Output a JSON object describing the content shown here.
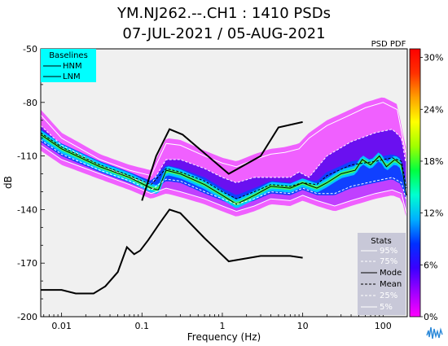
{
  "chart_data": {
    "type": "line",
    "title_line1": "YM.NJ262.--.CH1 : 1410 PSDs",
    "title_line2": "07-JUL-2021 / 05-AUG-2021",
    "xlabel": "Frequency (Hz)",
    "ylabel": "dB",
    "x_scale": "log",
    "xlim": [
      0.0055,
      200
    ],
    "ylim": [
      -200,
      -50
    ],
    "x_ticks": [
      {
        "v": 0.01,
        "label": "0.01"
      },
      {
        "v": 0.1,
        "label": "0.1"
      },
      {
        "v": 1,
        "label": "1"
      },
      {
        "v": 10,
        "label": "10"
      },
      {
        "v": 100,
        "label": "100"
      }
    ],
    "y_ticks": [
      {
        "v": -50,
        "label": "-50"
      },
      {
        "v": -80,
        "label": "-80"
      },
      {
        "v": -110,
        "label": "-110"
      },
      {
        "v": -140,
        "label": "-140"
      },
      {
        "v": -170,
        "label": "-170"
      },
      {
        "v": -200,
        "label": "-200"
      }
    ],
    "colorbar": {
      "title": "PSD PDF",
      "ticks": [
        {
          "v": 30,
          "label": "30%"
        },
        {
          "v": 24,
          "label": "24%"
        },
        {
          "v": 18,
          "label": "18%"
        },
        {
          "v": 12,
          "label": "12%"
        },
        {
          "v": 6,
          "label": "6%"
        },
        {
          "v": 0,
          "label": "0%"
        }
      ],
      "colors": [
        "#ff00ff",
        "#a000ff",
        "#3a00ff",
        "#0030ff",
        "#00b0ff",
        "#00ffd0",
        "#00ff40",
        "#a0ff00",
        "#ffff00",
        "#ffa000",
        "#ff3000",
        "#ff0000"
      ]
    },
    "baselines": {
      "title": "Baselines",
      "items": [
        "HNM",
        "LNM"
      ],
      "HNM": [
        [
          0.1,
          -135
        ],
        [
          0.15,
          -110
        ],
        [
          0.22,
          -95
        ],
        [
          0.32,
          -98
        ],
        [
          1.2,
          -120
        ],
        [
          3,
          -110
        ],
        [
          5,
          -94
        ],
        [
          10,
          -91
        ]
      ],
      "LNM": [
        [
          0.0055,
          -185
        ],
        [
          0.01,
          -185
        ],
        [
          0.015,
          -187
        ],
        [
          0.025,
          -187
        ],
        [
          0.035,
          -183
        ],
        [
          0.05,
          -175
        ],
        [
          0.065,
          -161
        ],
        [
          0.08,
          -165
        ],
        [
          0.095,
          -163
        ],
        [
          0.12,
          -157
        ],
        [
          0.17,
          -147
        ],
        [
          0.22,
          -140
        ],
        [
          0.3,
          -142
        ],
        [
          0.6,
          -156
        ],
        [
          1.2,
          -169
        ],
        [
          3,
          -166
        ],
        [
          7,
          -166
        ],
        [
          10,
          -167
        ]
      ]
    },
    "stats": {
      "title": "Stats",
      "labels": [
        "95%",
        "75%",
        "Mode",
        "Mean",
        "25%",
        "5%"
      ]
    },
    "series": [
      {
        "name": "95%",
        "values": [
          [
            0.0055,
            -87
          ],
          [
            0.01,
            -100
          ],
          [
            0.03,
            -112
          ],
          [
            0.07,
            -118
          ],
          [
            0.13,
            -121
          ],
          [
            0.2,
            -103
          ],
          [
            0.3,
            -104
          ],
          [
            0.6,
            -110
          ],
          [
            1,
            -114
          ],
          [
            1.5,
            -116
          ],
          [
            2.5,
            -112
          ],
          [
            4,
            -109
          ],
          [
            6,
            -108
          ],
          [
            9,
            -106
          ],
          [
            12,
            -100
          ],
          [
            20,
            -93
          ],
          [
            35,
            -88
          ],
          [
            60,
            -83
          ],
          [
            100,
            -80
          ],
          [
            150,
            -84
          ],
          [
            190,
            -108
          ]
        ]
      },
      {
        "name": "75%",
        "values": [
          [
            0.0055,
            -93
          ],
          [
            0.01,
            -104
          ],
          [
            0.03,
            -115
          ],
          [
            0.07,
            -122
          ],
          [
            0.13,
            -126
          ],
          [
            0.2,
            -112
          ],
          [
            0.3,
            -112
          ],
          [
            0.6,
            -117
          ],
          [
            1,
            -122
          ],
          [
            1.5,
            -125
          ],
          [
            2.5,
            -122
          ],
          [
            4,
            -122
          ],
          [
            7,
            -122
          ],
          [
            9,
            -119
          ],
          [
            12,
            -122
          ],
          [
            20,
            -110
          ],
          [
            40,
            -102
          ],
          [
            80,
            -97
          ],
          [
            130,
            -95
          ],
          [
            170,
            -100
          ],
          [
            190,
            -113
          ]
        ]
      },
      {
        "name": "Mode",
        "values": [
          [
            0.0055,
            -98
          ],
          [
            0.01,
            -106
          ],
          [
            0.03,
            -116
          ],
          [
            0.07,
            -122
          ],
          [
            0.13,
            -128
          ],
          [
            0.16,
            -129
          ],
          [
            0.2,
            -118
          ],
          [
            0.3,
            -120
          ],
          [
            0.6,
            -126
          ],
          [
            1,
            -132
          ],
          [
            1.5,
            -137
          ],
          [
            2.5,
            -132
          ],
          [
            4,
            -127
          ],
          [
            7,
            -128
          ],
          [
            10,
            -125
          ],
          [
            15,
            -128
          ],
          [
            20,
            -125
          ],
          [
            30,
            -120
          ],
          [
            45,
            -118
          ],
          [
            55,
            -112
          ],
          [
            70,
            -115
          ],
          [
            90,
            -110
          ],
          [
            110,
            -116
          ],
          [
            140,
            -112
          ],
          [
            170,
            -115
          ],
          [
            195,
            -132
          ]
        ]
      },
      {
        "name": "Mean",
        "values": [
          [
            0.0055,
            -97
          ],
          [
            0.01,
            -105
          ],
          [
            0.03,
            -115
          ],
          [
            0.07,
            -121
          ],
          [
            0.13,
            -126
          ],
          [
            0.2,
            -117
          ],
          [
            0.3,
            -119
          ],
          [
            0.6,
            -124
          ],
          [
            1,
            -130
          ],
          [
            1.5,
            -134
          ],
          [
            2.5,
            -130
          ],
          [
            4,
            -126
          ],
          [
            7,
            -127
          ],
          [
            10,
            -125
          ],
          [
            15,
            -126
          ],
          [
            20,
            -121
          ],
          [
            40,
            -115
          ],
          [
            80,
            -113
          ],
          [
            130,
            -111
          ],
          [
            170,
            -113
          ],
          [
            195,
            -128
          ]
        ]
      },
      {
        "name": "25%",
        "values": [
          [
            0.0055,
            -101
          ],
          [
            0.01,
            -109
          ],
          [
            0.03,
            -118
          ],
          [
            0.07,
            -124
          ],
          [
            0.13,
            -129
          ],
          [
            0.2,
            -123
          ],
          [
            0.3,
            -124
          ],
          [
            0.6,
            -130
          ],
          [
            1,
            -134
          ],
          [
            1.5,
            -137
          ],
          [
            2.5,
            -134
          ],
          [
            4,
            -130
          ],
          [
            7,
            -131
          ],
          [
            10,
            -128
          ],
          [
            15,
            -131
          ],
          [
            25,
            -131
          ],
          [
            40,
            -127
          ],
          [
            80,
            -124
          ],
          [
            130,
            -122
          ],
          [
            170,
            -125
          ],
          [
            195,
            -135
          ]
        ]
      },
      {
        "name": "5%",
        "values": [
          [
            0.0055,
            -104
          ],
          [
            0.01,
            -112
          ],
          [
            0.03,
            -120
          ],
          [
            0.07,
            -126
          ],
          [
            0.13,
            -131
          ],
          [
            0.2,
            -128
          ],
          [
            0.3,
            -130
          ],
          [
            0.6,
            -134
          ],
          [
            1,
            -138
          ],
          [
            1.5,
            -141
          ],
          [
            2.5,
            -138
          ],
          [
            4,
            -134
          ],
          [
            7,
            -135
          ],
          [
            10,
            -132
          ],
          [
            15,
            -135
          ],
          [
            25,
            -138
          ],
          [
            40,
            -135
          ],
          [
            80,
            -131
          ],
          [
            130,
            -129
          ],
          [
            170,
            -131
          ],
          [
            195,
            -142
          ]
        ]
      }
    ]
  }
}
